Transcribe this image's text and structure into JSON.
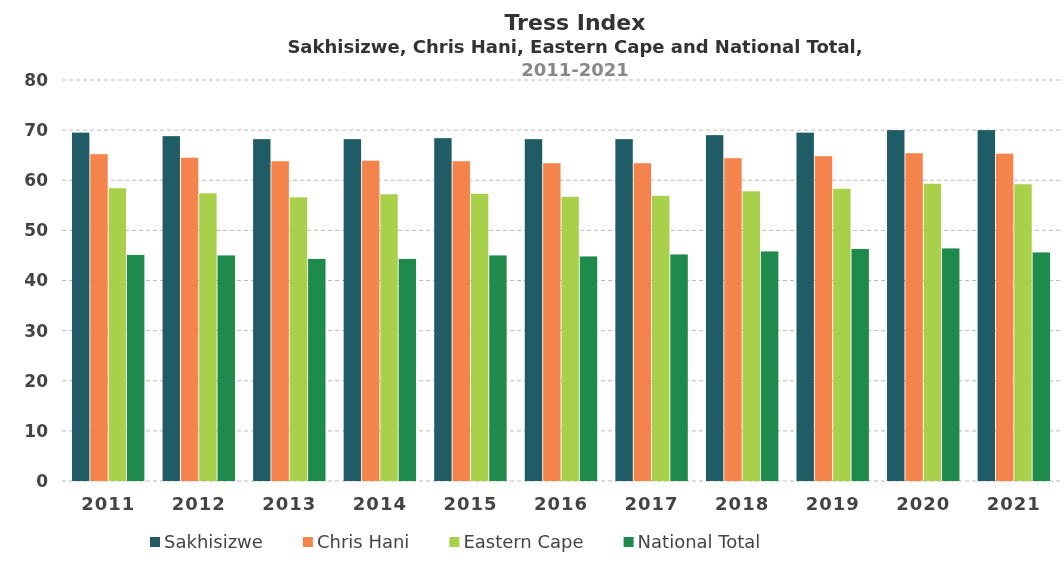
{
  "chart_data": {
    "type": "bar",
    "title": "Tress Index",
    "subtitle": "Sakhisizwe, Chris Hani, Eastern Cape and National Total,\n2011-2021",
    "categories": [
      "2011",
      "2012",
      "2013",
      "2014",
      "2015",
      "2016",
      "2017",
      "2018",
      "2019",
      "2020",
      "2021"
    ],
    "series": [
      {
        "name": "Sakhisizwe",
        "color": "#1f5c66",
        "values": [
          69.5,
          68.8,
          68.2,
          68.2,
          68.4,
          68.2,
          68.2,
          69.0,
          69.5,
          70.0,
          70.0
        ]
      },
      {
        "name": "Chris Hani",
        "color": "#f4844c",
        "values": [
          65.2,
          64.5,
          63.8,
          63.9,
          63.8,
          63.4,
          63.4,
          64.4,
          64.8,
          65.4,
          65.3
        ]
      },
      {
        "name": "Eastern Cape",
        "color": "#a8d04a",
        "values": [
          58.4,
          57.4,
          56.6,
          57.2,
          57.3,
          56.7,
          56.9,
          57.8,
          58.3,
          59.3,
          59.2
        ]
      },
      {
        "name": "National Total",
        "color": "#1e8a4c",
        "values": [
          45.1,
          45.0,
          44.3,
          44.3,
          45.0,
          44.8,
          45.2,
          45.8,
          46.3,
          46.4,
          45.6
        ]
      }
    ],
    "ylim": [
      0,
      80
    ],
    "yticks": [
      0,
      10,
      20,
      30,
      40,
      50,
      60,
      70,
      80
    ],
    "grid": "y",
    "legend": "bottom"
  }
}
